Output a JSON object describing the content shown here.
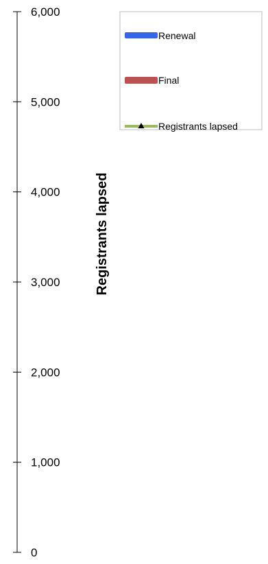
{
  "chart_data": {
    "type": "line",
    "title": "",
    "xlabel": "",
    "ylabel": "Registrants lapsed",
    "ylim": [
      0,
      6000
    ],
    "y_ticks": [
      0,
      1000,
      2000,
      3000,
      4000,
      5000,
      6000
    ],
    "y_tick_labels": [
      "0",
      "1,000",
      "2,000",
      "3,000",
      "4,000",
      "5,000",
      "6,000"
    ],
    "grid": false,
    "legend_position": "top-right",
    "series": [
      {
        "name": "Renewal",
        "kind": "bar",
        "color": "#3366ee",
        "values": []
      },
      {
        "name": "Final",
        "kind": "bar",
        "color": "#c0504d",
        "values": []
      },
      {
        "name": "Registrants lapsed",
        "kind": "line",
        "color": "#9bbb59",
        "marker_color": "#000000",
        "values": []
      }
    ]
  }
}
